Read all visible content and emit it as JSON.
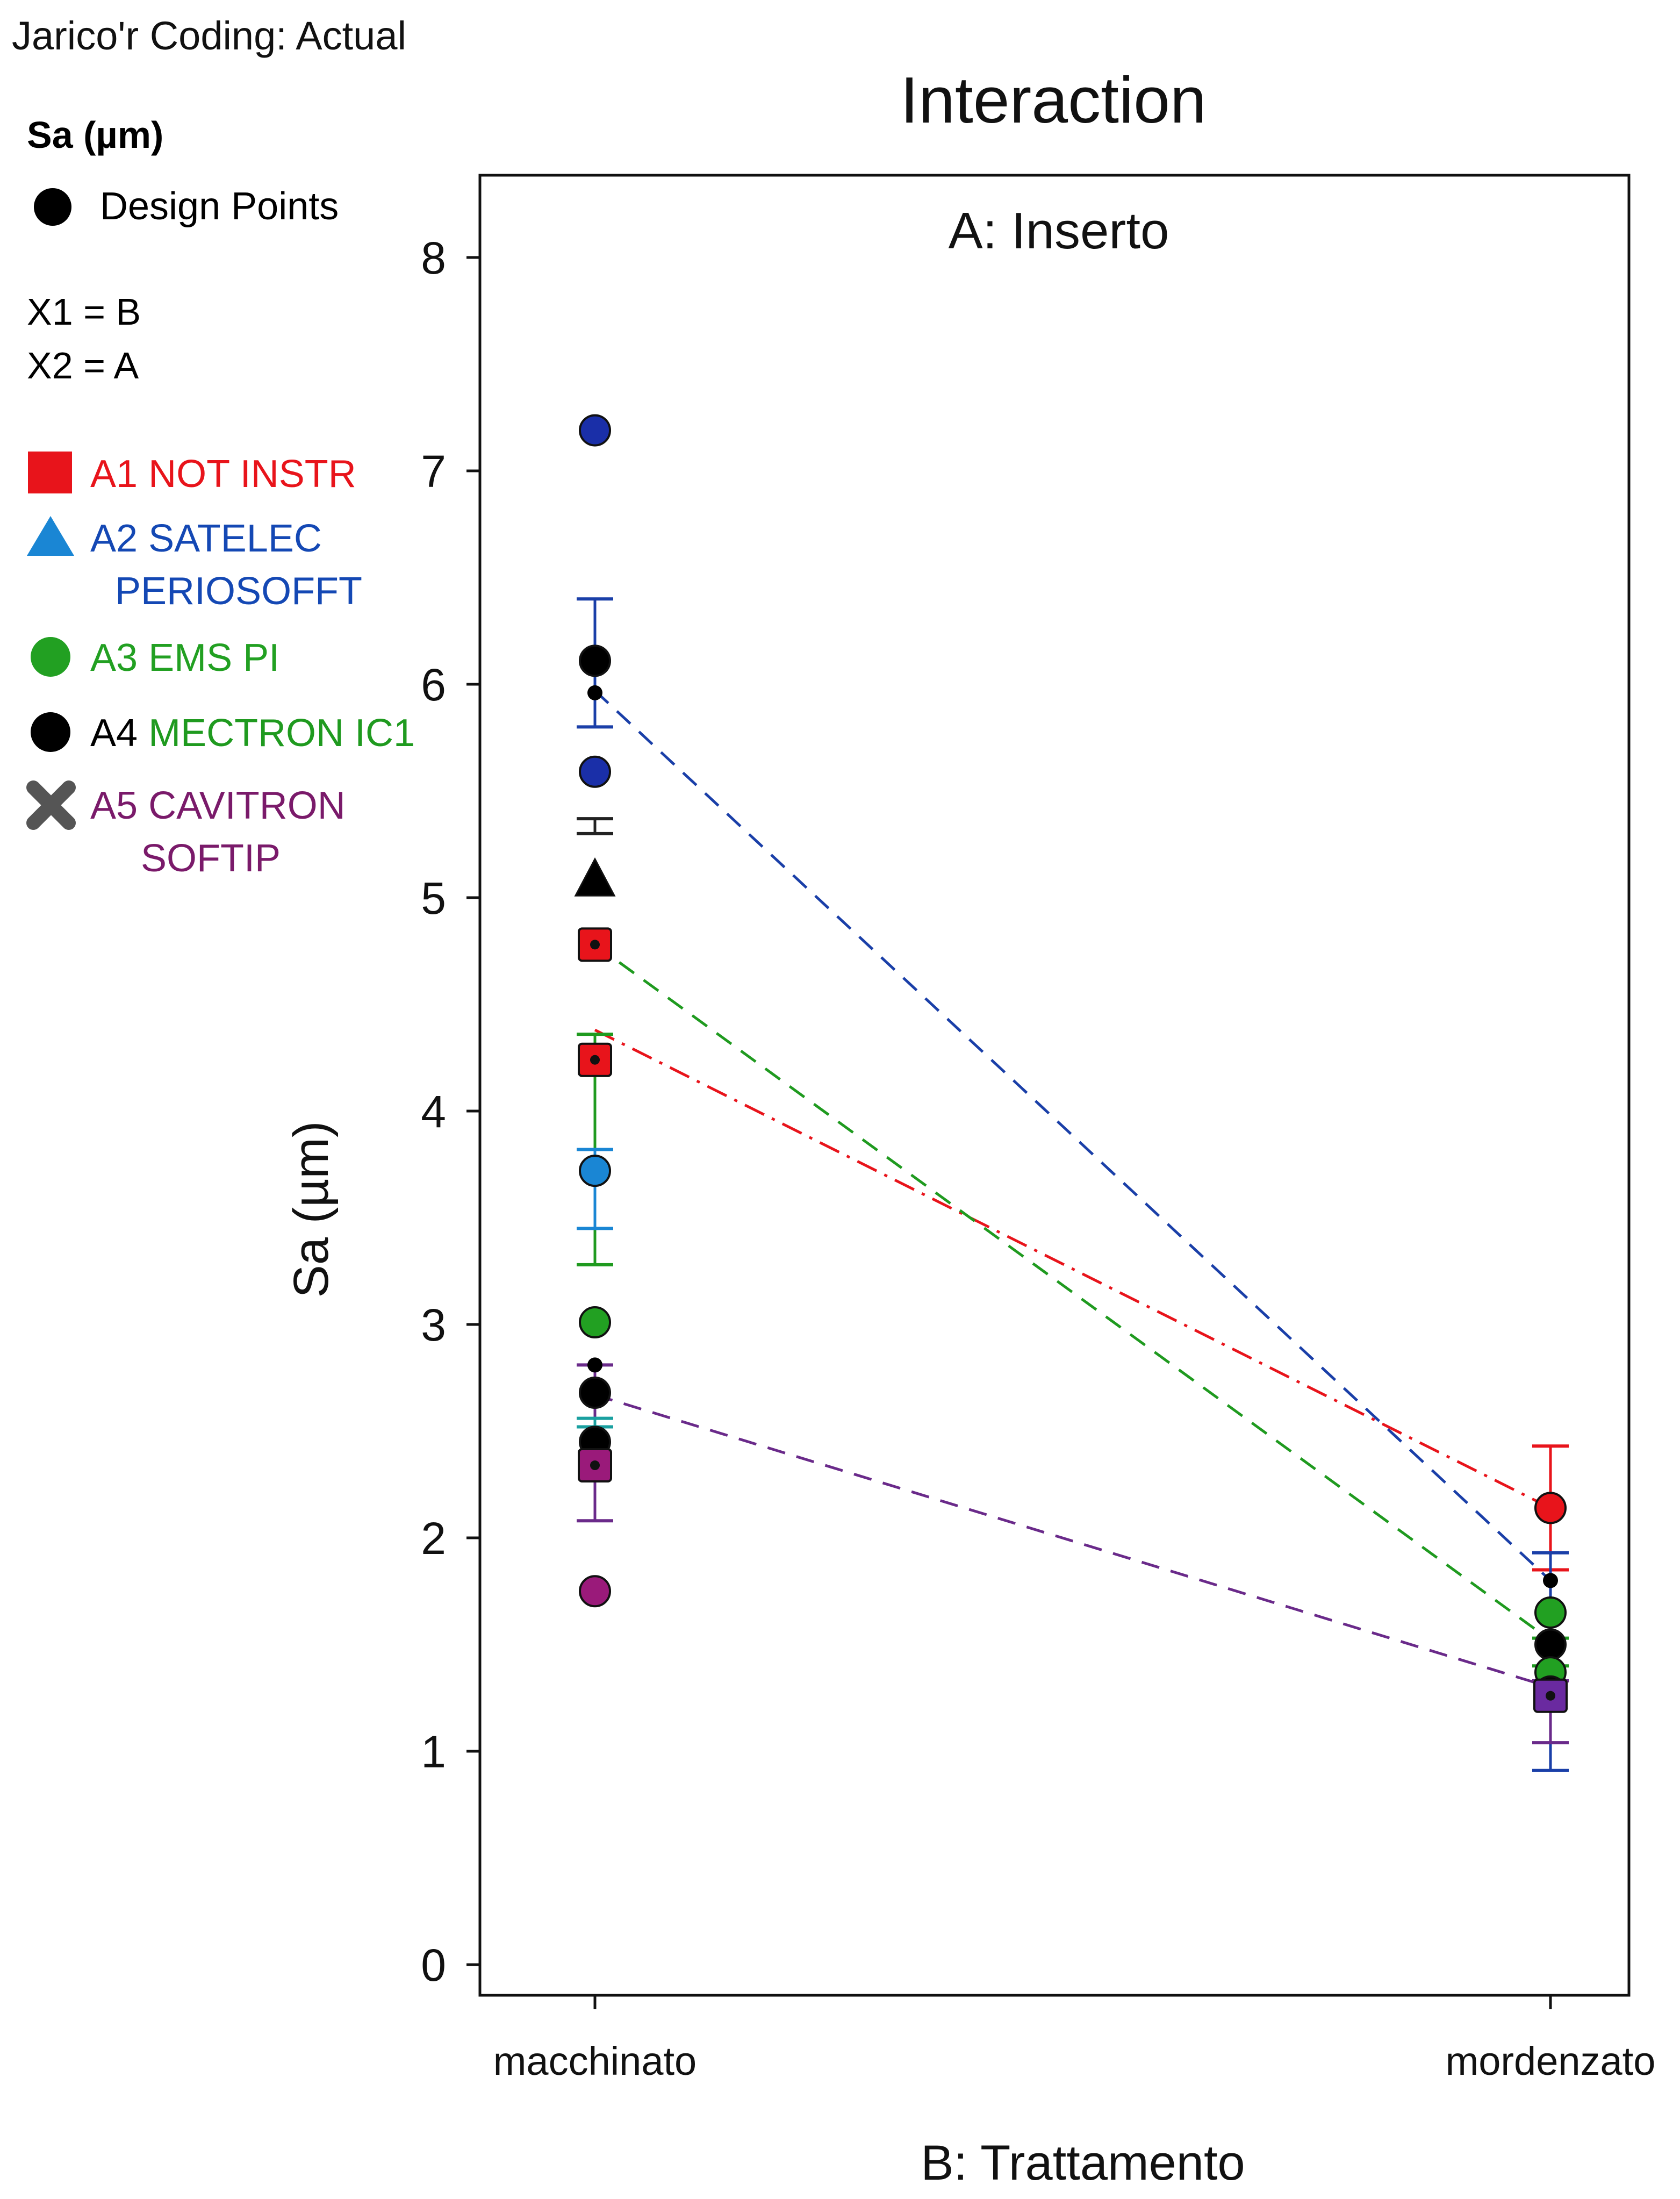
{
  "chart_data": {
    "type": "line",
    "header": "Jarico'r Coding: Actual",
    "title": "Interaction",
    "panel_label": "A: Inserto",
    "xlabel": "B: Trattamento",
    "ylabel": "Sa (µm)",
    "categories": [
      "macchinato",
      "mordenzato"
    ],
    "ylim": [
      0,
      8.2
    ],
    "yticks": [
      0,
      1,
      2,
      3,
      4,
      5,
      6,
      7,
      8
    ],
    "legend": {
      "response": "Sa (µm)",
      "design_points": "Design Points",
      "x1": "X1 = B",
      "x2": "X2 = A",
      "entries": [
        {
          "id": "A1",
          "prefix": "A1",
          "name": "NOT INSTR",
          "name2": "",
          "color": "#e8141b",
          "name_color": "#e8141b",
          "prefix_color": "#e8141b",
          "marker": "square"
        },
        {
          "id": "A2",
          "prefix": "A2",
          "name": "SATELEC",
          "name2": "PERIOSOFFT",
          "color": "#1a86d4",
          "name_color": "#1448b4",
          "prefix_color": "#1448b4",
          "marker": "triangle"
        },
        {
          "id": "A3",
          "prefix": "A3",
          "name": "EMS PI",
          "name2": "",
          "color": "#22a022",
          "name_color": "#22a022",
          "prefix_color": "#22a022",
          "marker": "circle"
        },
        {
          "id": "A4",
          "prefix": "A4",
          "name": "MECTRON IC1",
          "name2": "",
          "color": "#000000",
          "name_color": "#1f9a1f",
          "prefix_color": "#000000",
          "marker": "circle"
        },
        {
          "id": "A5",
          "prefix": "A5",
          "name": "CAVITRON",
          "name2": "SOFTIP",
          "color": "#555555",
          "name_color": "#7a1a6a",
          "prefix_color": "#7a1a6a",
          "marker": "cross"
        }
      ]
    },
    "series": [
      {
        "name": "A1 NOT INSTR",
        "color": "#e8141b",
        "dash": "dashdot",
        "values": [
          4.38,
          2.14
        ],
        "err_upper": [
          null,
          2.43
        ],
        "err_lower": [
          null,
          1.85
        ]
      },
      {
        "name": "A2 SATELEC PERIOSOFFT",
        "color": "#1a3fa8",
        "dash": "dashed",
        "values": [
          5.97,
          1.8
        ],
        "err_upper": [
          6.4,
          1.93
        ],
        "err_lower": [
          5.8,
          0.91
        ]
      },
      {
        "name": "A3 EMS PI",
        "color": "#1f9a1f",
        "dash": "dashed",
        "values": [
          4.78,
          1.52
        ],
        "err_upper": [
          4.36,
          1.53
        ],
        "err_lower": [
          3.28,
          1.4
        ]
      },
      {
        "name": "A5 CAVITRON SOFTIP",
        "color": "#6a2a8a",
        "dash": "dashed",
        "values": [
          2.67,
          1.3
        ],
        "err_upper": [
          2.81,
          1.33
        ],
        "err_lower": [
          2.08,
          1.04
        ]
      }
    ],
    "extra_error_bars": [
      {
        "category": "macchinato",
        "color": "#1a86d4",
        "upper": 3.82,
        "lower": 3.45
      },
      {
        "category": "macchinato",
        "color": "#222222",
        "upper": 5.37,
        "lower": 5.3
      },
      {
        "category": "macchinato",
        "color": "#1aa0a0",
        "upper": 2.56,
        "lower": 2.52
      }
    ],
    "design_points": [
      {
        "category": "macchinato",
        "value": 7.19,
        "color": "#1a2fa8",
        "marker": "circle"
      },
      {
        "category": "macchinato",
        "value": 6.11,
        "color": "#000000",
        "marker": "circle"
      },
      {
        "category": "macchinato",
        "value": 5.96,
        "color": "#000000",
        "marker": "dot"
      },
      {
        "category": "macchinato",
        "value": 5.59,
        "color": "#1a2fa8",
        "marker": "circle"
      },
      {
        "category": "macchinato",
        "value": 5.08,
        "color": "#000000",
        "marker": "triangle"
      },
      {
        "category": "macchinato",
        "value": 4.78,
        "color": "#e8141b",
        "marker": "square"
      },
      {
        "category": "macchinato",
        "value": 4.24,
        "color": "#e8141b",
        "marker": "square"
      },
      {
        "category": "macchinato",
        "value": 3.72,
        "color": "#1a86d4",
        "marker": "circle"
      },
      {
        "category": "macchinato",
        "value": 3.01,
        "color": "#22a022",
        "marker": "circle"
      },
      {
        "category": "macchinato",
        "value": 2.81,
        "color": "#000000",
        "marker": "dot"
      },
      {
        "category": "macchinato",
        "value": 2.68,
        "color": "#000000",
        "marker": "circle"
      },
      {
        "category": "macchinato",
        "value": 2.45,
        "color": "#000000",
        "marker": "circle"
      },
      {
        "category": "macchinato",
        "value": 2.34,
        "color": "#9a1a7a",
        "marker": "square"
      },
      {
        "category": "macchinato",
        "value": 1.75,
        "color": "#9a1a7a",
        "marker": "circle"
      },
      {
        "category": "mordenzato",
        "value": 2.14,
        "color": "#e8141b",
        "marker": "circle"
      },
      {
        "category": "mordenzato",
        "value": 1.8,
        "color": "#000000",
        "marker": "dot"
      },
      {
        "category": "mordenzato",
        "value": 1.65,
        "color": "#22a022",
        "marker": "circle"
      },
      {
        "category": "mordenzato",
        "value": 1.5,
        "color": "#000000",
        "marker": "circle"
      },
      {
        "category": "mordenzato",
        "value": 1.37,
        "color": "#22a022",
        "marker": "circle"
      },
      {
        "category": "mordenzato",
        "value": 1.28,
        "color": "#000000",
        "marker": "circle"
      },
      {
        "category": "mordenzato",
        "value": 1.26,
        "color": "#6a2aa0",
        "marker": "square"
      }
    ],
    "grid": false
  }
}
